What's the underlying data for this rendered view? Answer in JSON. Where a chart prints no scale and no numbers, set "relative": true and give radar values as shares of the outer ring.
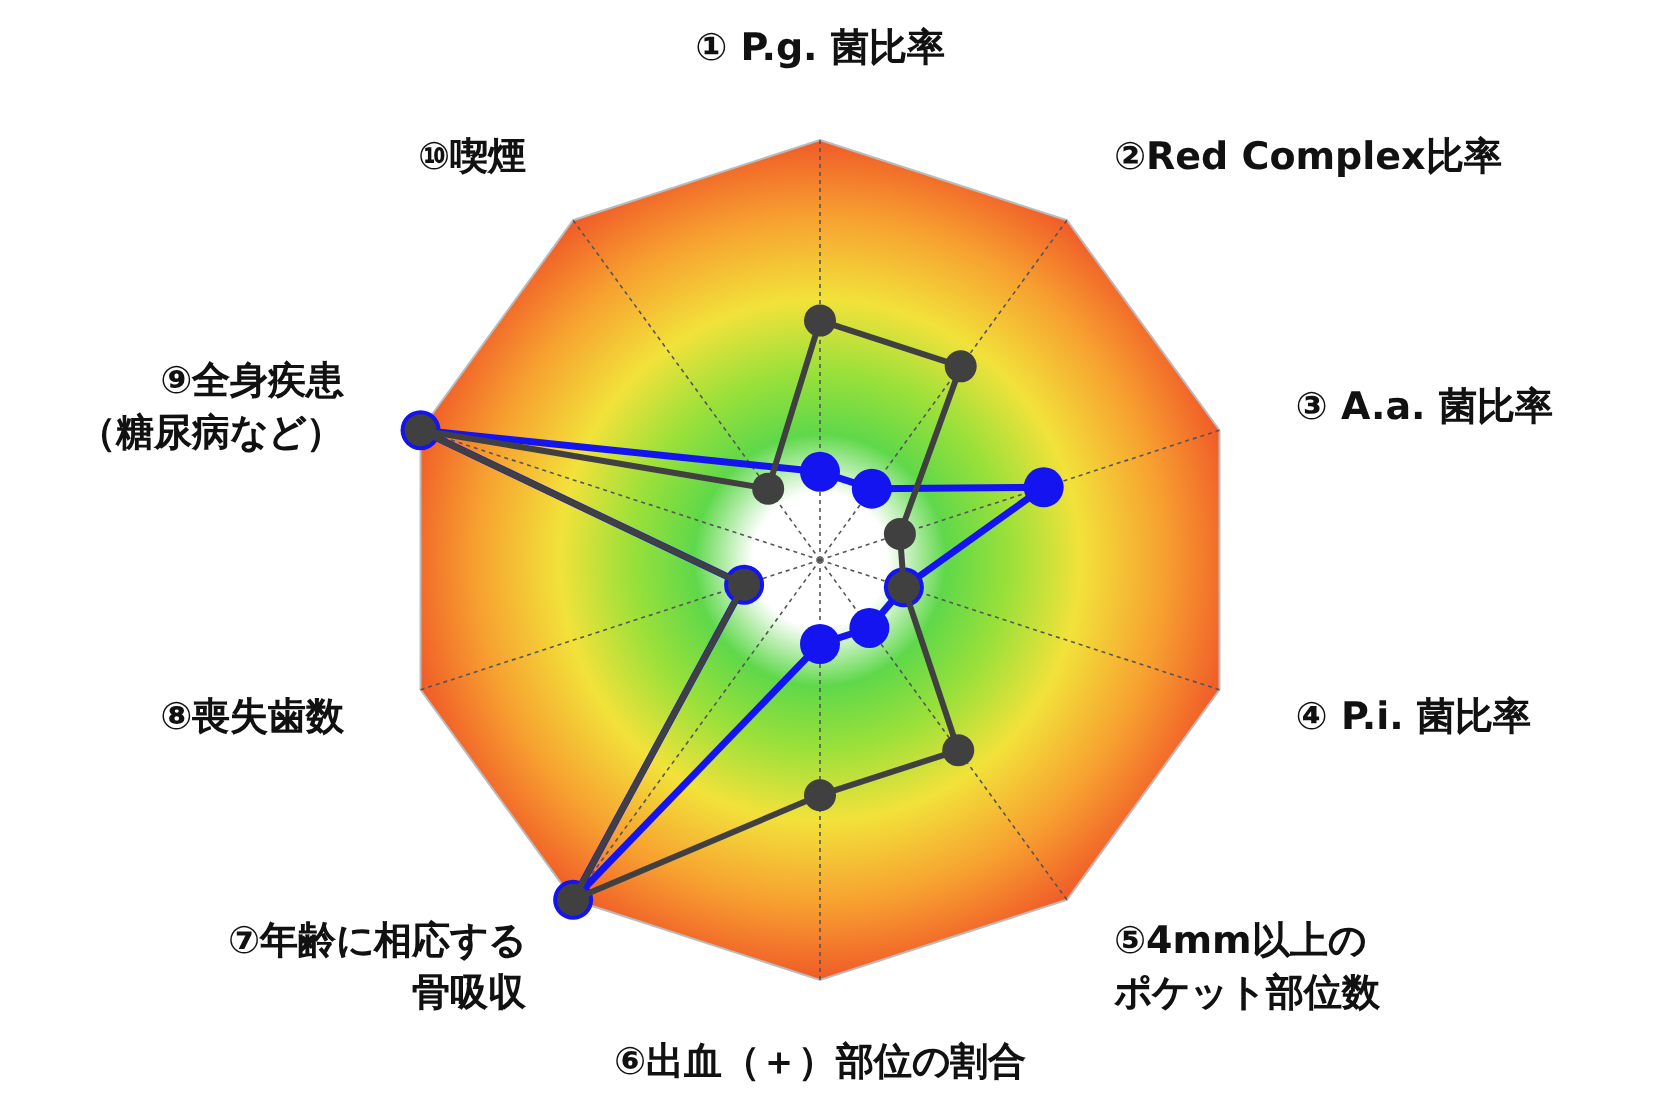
{
  "chart_data": {
    "type": "radar",
    "relative": true,
    "marker": "circle",
    "categories": [
      "① P.g. 菌比率",
      "②Red Complex比率",
      "③ A.a. 菌比率",
      "④ P.i. 菌比率",
      "⑤4mm以上のポケット部位数",
      "⑥出血（＋）部位の割合",
      "⑦年齢に相応する骨吸収",
      "⑧喪失歯数",
      "⑨全身疾患（糖尿病など）",
      "⑩喫煙"
    ],
    "series": [
      {
        "color": "#1414f0",
        "values": [
          0.21,
          0.21,
          0.56,
          0.21,
          0.2,
          0.2,
          1.0,
          0.19,
          1.0,
          null
        ]
      },
      {
        "color": "#404040",
        "values": [
          0.57,
          0.57,
          0.2,
          0.21,
          0.56,
          0.56,
          1.0,
          0.19,
          1.0,
          0.21
        ]
      }
    ]
  }
}
